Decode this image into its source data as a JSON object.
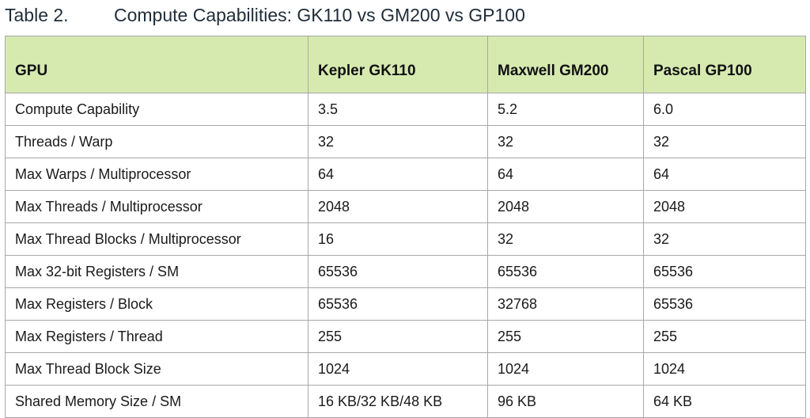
{
  "caption": {
    "label": "Table 2.",
    "title": "Compute Capabilities:  GK110 vs GM200 vs GP100"
  },
  "table": {
    "headers": [
      "GPU",
      "Kepler GK110",
      "Maxwell GM200",
      "Pascal GP100"
    ],
    "rows": [
      [
        "Compute Capability",
        "3.5",
        "5.2",
        "6.0"
      ],
      [
        "Threads / Warp",
        "32",
        "32",
        "32"
      ],
      [
        "Max Warps / Multiprocessor",
        "64",
        "64",
        "64"
      ],
      [
        "Max Threads / Multiprocessor",
        "2048",
        "2048",
        "2048"
      ],
      [
        "Max Thread Blocks / Multiprocessor",
        "16",
        "32",
        "32"
      ],
      [
        "Max 32-bit Registers / SM",
        "65536",
        "65536",
        "65536"
      ],
      [
        "Max Registers / Block",
        "65536",
        "32768",
        "65536"
      ],
      [
        "Max Registers / Thread",
        "255",
        "255",
        "255"
      ],
      [
        "Max Thread Block Size",
        "1024",
        "1024",
        "1024"
      ],
      [
        "Shared Memory Size / SM",
        "16 KB/32 KB/48 KB",
        "96 KB",
        "64 KB"
      ]
    ]
  },
  "colors": {
    "header_background": "#d6eab0",
    "border": "#a8a8a8",
    "caption_text": "#1f2d3a"
  }
}
